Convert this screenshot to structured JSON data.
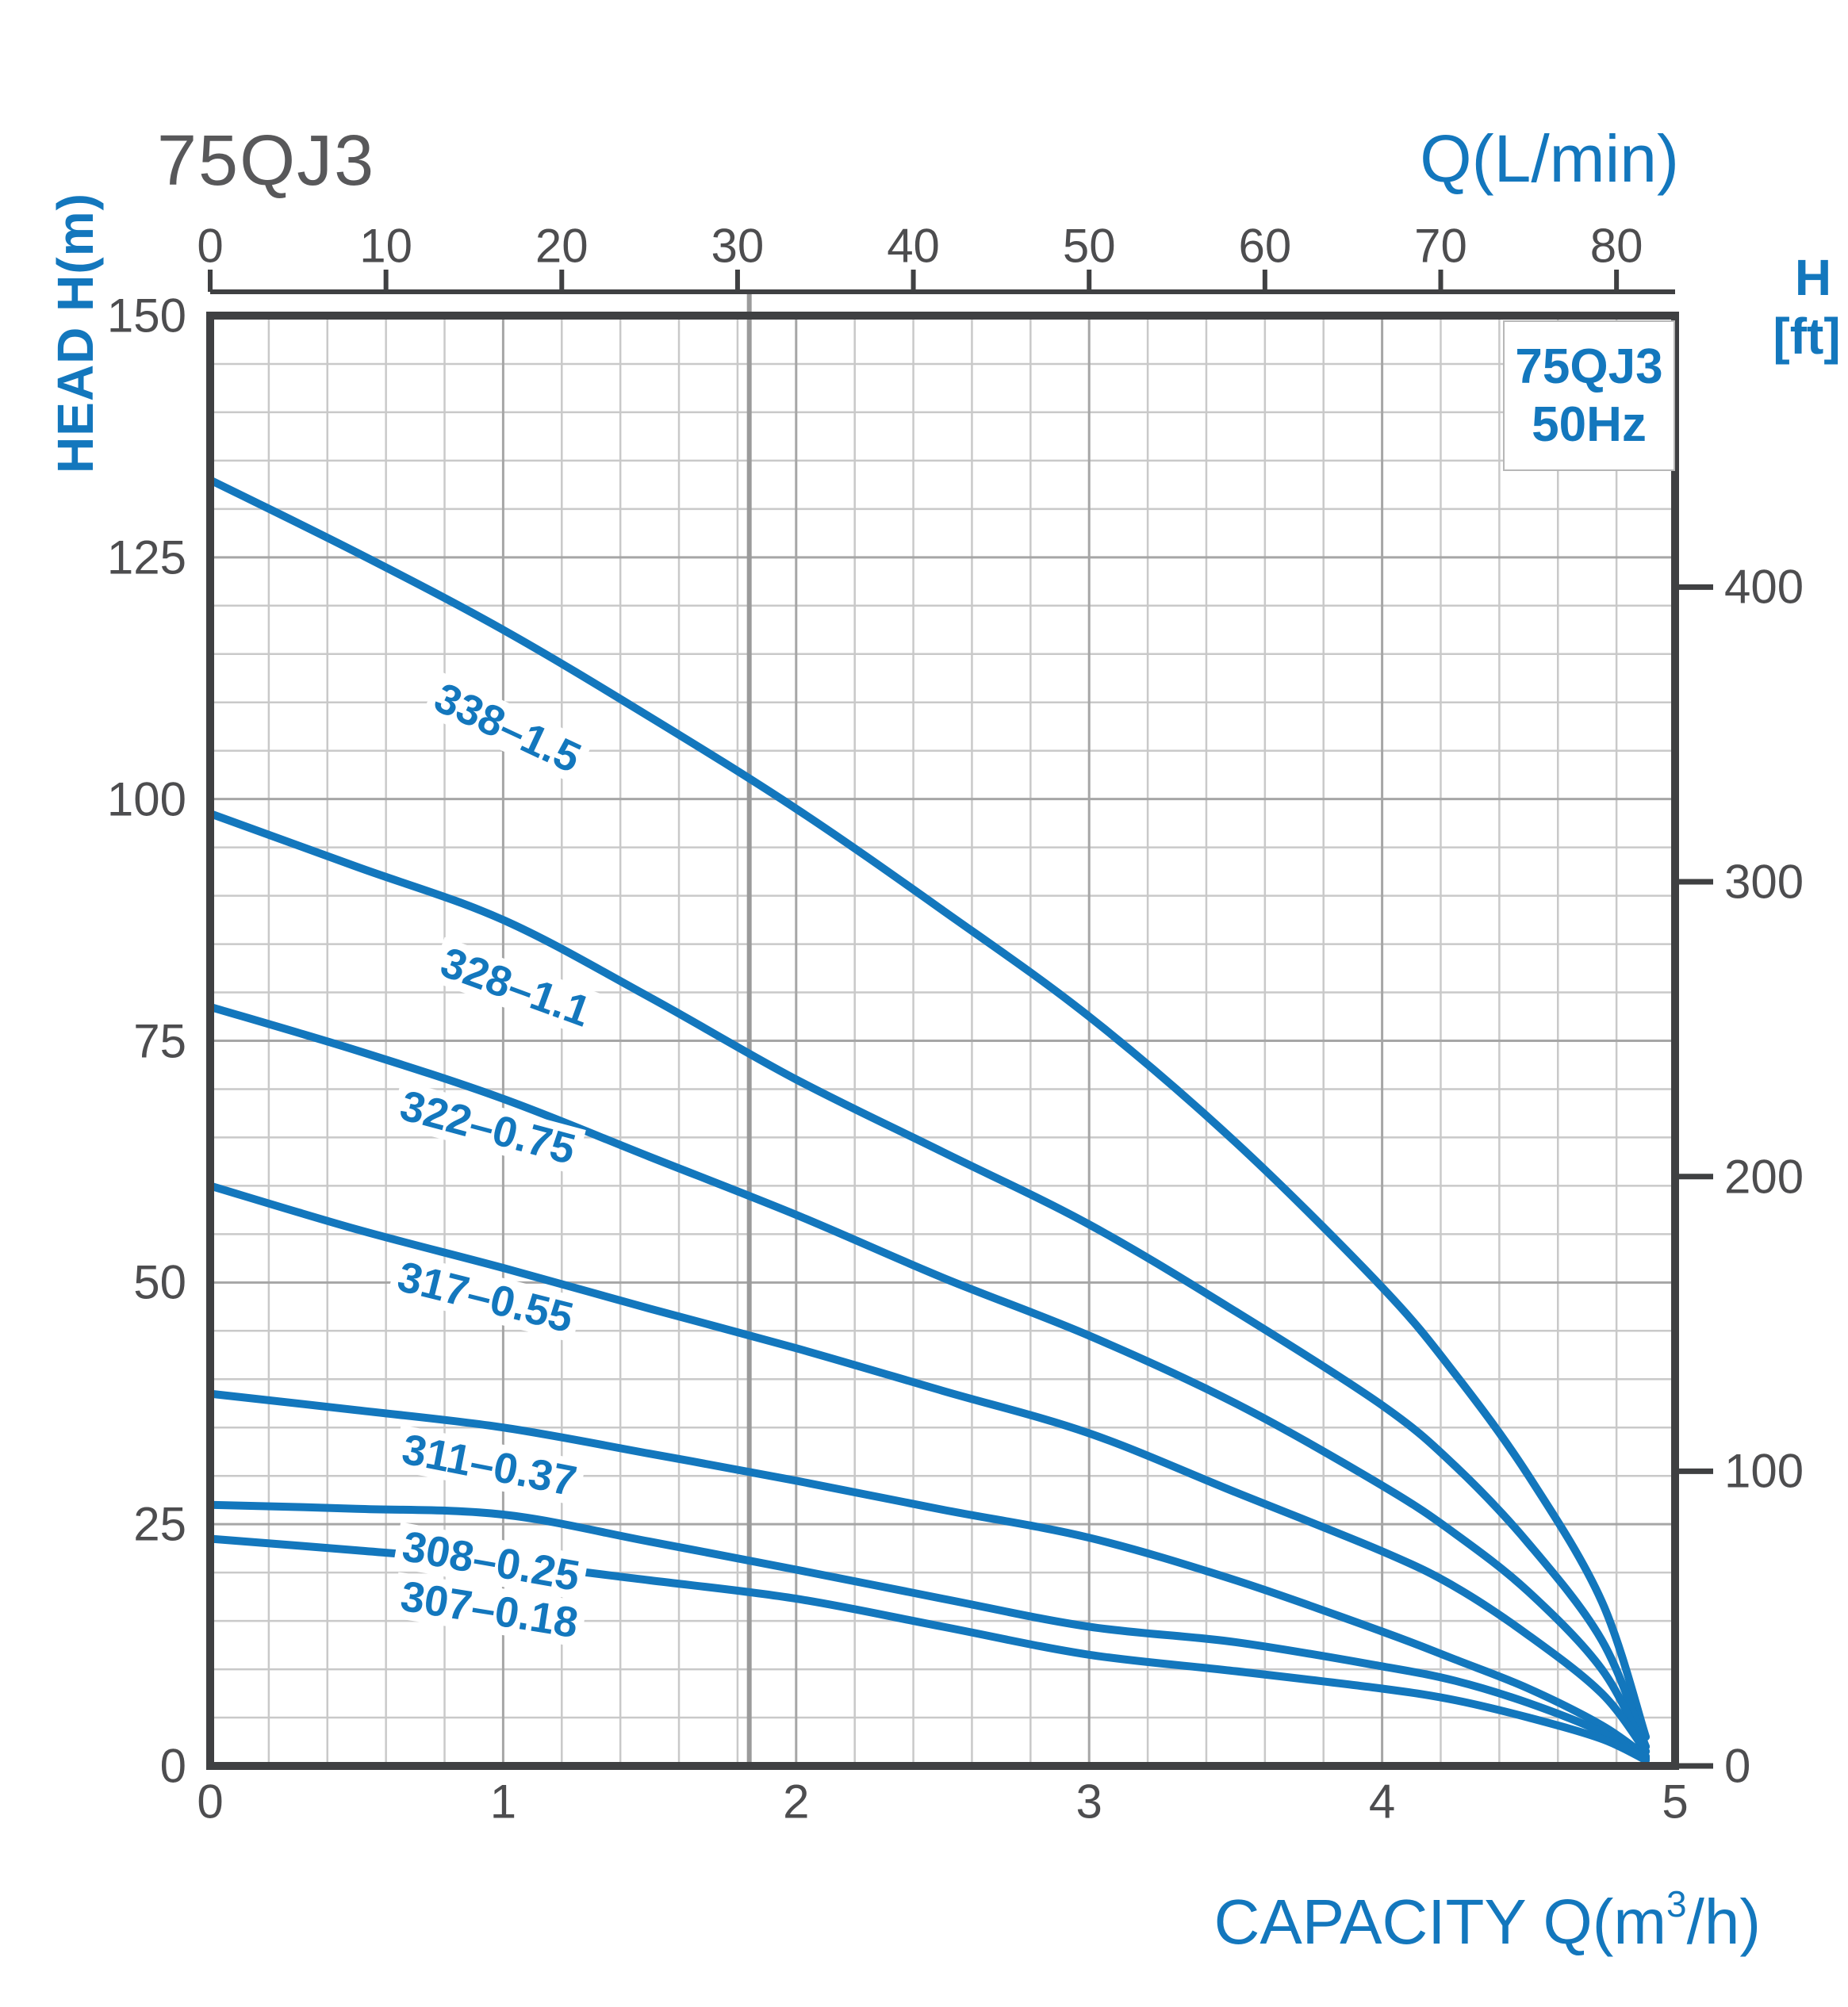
{
  "title": "75QJ3",
  "legend": {
    "line1": "75QJ3",
    "line2": "50Hz"
  },
  "axes": {
    "top": {
      "label": "Q(L/min)",
      "ticks": [
        0,
        10,
        20,
        30,
        40,
        50,
        60,
        70,
        80
      ]
    },
    "left": {
      "label": "HEAD H(m)",
      "ticks": [
        150,
        125,
        100,
        75,
        50,
        25,
        0
      ]
    },
    "right": {
      "label_line1": "H",
      "label_line2": "[ft]",
      "ticks": [
        400,
        300,
        200,
        100,
        0
      ]
    },
    "bottom": {
      "label_main": "CAPACITY Q(m",
      "label_sup": "3",
      "label_end": "/h)",
      "ticks": [
        0,
        1,
        2,
        3,
        4,
        5
      ]
    }
  },
  "colors": {
    "curve_blue": "#1377bd",
    "blue_text": "#1377bd",
    "gray_text": "#4d4d4f",
    "axis_dark": "#3f4042",
    "grid_minor": "#c9c9c9",
    "grid_major": "#a6a6a6",
    "reference_line": "#9b9b9b",
    "legend_border": "#b7b7b7"
  },
  "chart_data": {
    "type": "line",
    "title": "75QJ3",
    "subtitle": "50Hz",
    "xlabel": "CAPACITY Q(m3/h)",
    "ylabel": "HEAD H(m)",
    "x_range": [
      0,
      5
    ],
    "y_range": [
      0,
      150
    ],
    "top_axis": {
      "label": "Q(L/min)",
      "ticks": [
        0,
        10,
        20,
        30,
        40,
        50,
        60,
        70,
        80
      ],
      "max": 83.333
    },
    "right_axis": {
      "label": "H [ft]",
      "ticks": [
        400,
        300,
        200,
        100,
        0
      ],
      "m_per_ft": 0.3048
    },
    "grid": {
      "x_minor": 0.2,
      "x_major": 1.0,
      "y_minor": 5,
      "y_major": 25,
      "grid_on": true
    },
    "reference_line_q": 1.84,
    "legend_position": "top-right",
    "series": [
      {
        "name": "338-1.5",
        "label": "338–1.5",
        "label_center": [
          640,
          918
        ],
        "label_angle": 25,
        "points": [
          [
            0,
            133
          ],
          [
            0.5,
            125.5
          ],
          [
            1,
            117.5
          ],
          [
            1.5,
            108.5
          ],
          [
            2,
            99
          ],
          [
            2.5,
            88.5
          ],
          [
            3,
            77.5
          ],
          [
            3.5,
            64.5
          ],
          [
            4,
            49.5
          ],
          [
            4.25,
            40.5
          ],
          [
            4.5,
            30
          ],
          [
            4.75,
            17
          ],
          [
            4.9,
            3
          ]
        ]
      },
      {
        "name": "328-1.1",
        "label": "328–1.1",
        "label_center": [
          650,
          1245
        ],
        "label_angle": 20,
        "points": [
          [
            0,
            98.5
          ],
          [
            0.5,
            93
          ],
          [
            1,
            87.5
          ],
          [
            1.5,
            79.5
          ],
          [
            2,
            71
          ],
          [
            2.5,
            63.5
          ],
          [
            3,
            56
          ],
          [
            3.5,
            47
          ],
          [
            4,
            37.3
          ],
          [
            4.25,
            31
          ],
          [
            4.5,
            23
          ],
          [
            4.75,
            13
          ],
          [
            4.9,
            2
          ]
        ]
      },
      {
        "name": "322-0.75",
        "label": "322–0.75",
        "label_center": [
          615,
          1422
        ],
        "label_angle": 15,
        "points": [
          [
            0,
            78.5
          ],
          [
            0.5,
            74
          ],
          [
            1,
            69
          ],
          [
            1.5,
            63
          ],
          [
            2,
            57
          ],
          [
            2.5,
            50.5
          ],
          [
            3,
            44.5
          ],
          [
            3.5,
            37.5
          ],
          [
            4,
            29
          ],
          [
            4.25,
            24
          ],
          [
            4.5,
            18
          ],
          [
            4.75,
            10
          ],
          [
            4.9,
            1.5
          ]
        ]
      },
      {
        "name": "317-0.55",
        "label": "317–0.55",
        "label_center": [
          612,
          1636
        ],
        "label_angle": 14,
        "points": [
          [
            0,
            60
          ],
          [
            0.5,
            55.5
          ],
          [
            1,
            51.5
          ],
          [
            1.5,
            47.3
          ],
          [
            2,
            43.2
          ],
          [
            2.5,
            38.8
          ],
          [
            3,
            34.4
          ],
          [
            3.5,
            28.3
          ],
          [
            4,
            22.2
          ],
          [
            4.25,
            18.5
          ],
          [
            4.5,
            13.5
          ],
          [
            4.75,
            7.5
          ],
          [
            4.9,
            1.5
          ]
        ]
      },
      {
        "name": "311-0.37",
        "label": "311–0.37",
        "label_center": [
          617,
          1848
        ],
        "label_angle": 11,
        "points": [
          [
            0,
            38.5
          ],
          [
            0.5,
            36.8
          ],
          [
            1,
            35
          ],
          [
            1.5,
            32.3
          ],
          [
            2,
            29.5
          ],
          [
            2.5,
            26.5
          ],
          [
            3,
            23.6
          ],
          [
            3.5,
            19.2
          ],
          [
            4,
            13.9
          ],
          [
            4.25,
            11
          ],
          [
            4.5,
            8
          ],
          [
            4.75,
            4.2
          ],
          [
            4.9,
            1
          ]
        ]
      },
      {
        "name": "308-0.25",
        "label": "308–0.25",
        "label_center": [
          619,
          1969
        ],
        "label_angle": 10,
        "points": [
          [
            0,
            27
          ],
          [
            0.5,
            26.6
          ],
          [
            1,
            26
          ],
          [
            1.5,
            23.2
          ],
          [
            2,
            20.3
          ],
          [
            2.5,
            17.3
          ],
          [
            3,
            14.4
          ],
          [
            3.5,
            12.8
          ],
          [
            4,
            10.3
          ],
          [
            4.25,
            8.8
          ],
          [
            4.5,
            6.5
          ],
          [
            4.75,
            3.5
          ],
          [
            4.9,
            0.8
          ]
        ]
      },
      {
        "name": "307-0.18",
        "label": "307–0.18",
        "label_center": [
          617,
          2030
        ],
        "label_angle": 9,
        "points": [
          [
            0,
            23.5
          ],
          [
            0.5,
            22.3
          ],
          [
            1,
            21
          ],
          [
            1.5,
            19.2
          ],
          [
            2,
            17.3
          ],
          [
            2.5,
            14.4
          ],
          [
            3,
            11.5
          ],
          [
            3.5,
            9.8
          ],
          [
            4,
            8
          ],
          [
            4.25,
            6.8
          ],
          [
            4.5,
            5
          ],
          [
            4.75,
            2.8
          ],
          [
            4.9,
            0.6
          ]
        ]
      }
    ]
  }
}
